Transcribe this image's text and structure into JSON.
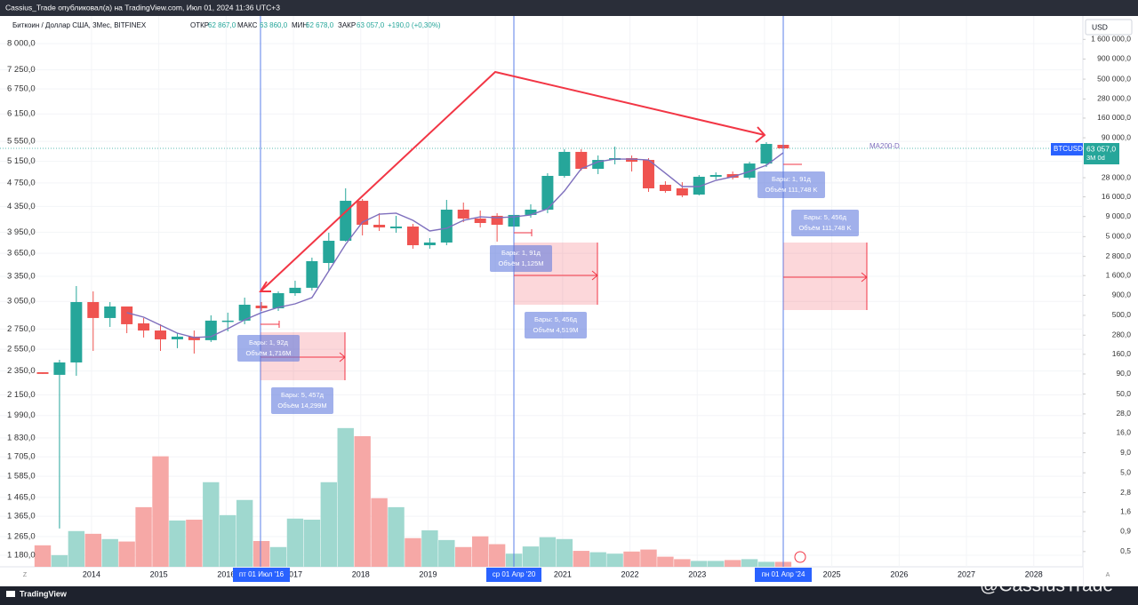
{
  "header": "Cassius_Trade опубликовал(а) на TradingView.com, Июл 01, 2024 11:36 UTC+3",
  "legend": {
    "symbol": "Биткоин / Доллар США, 3Мес, BITFINEX",
    "open_label": "ОТКР",
    "open": {
      "value": 62867,
      "label": "62 867,0"
    },
    "high_label": "МАКС",
    "high": {
      "value": 63860,
      "label": "63 860,0"
    },
    "low_label": "МИН",
    "low": {
      "value": 62678,
      "label": "62 678,0"
    },
    "close_label": "ЗАКР",
    "close": {
      "value": 63057,
      "label": "63 057,0"
    },
    "change": "+190,0 (+0,30%)"
  },
  "currency": "USD",
  "ticker": "BTCUSD",
  "countdown": "3М 0d",
  "date_labels": [
    "пт 01 Июл '16",
    "ср 01 Апр '20",
    "пн 01 Апр '24"
  ],
  "measures": [
    {
      "bars": "Бары: 1, 92д",
      "volume": "Объём 1,716M"
    },
    {
      "bars": "Бары: 5, 457д",
      "volume": "Объём 14,299M"
    },
    {
      "bars": "Бары: 1, 91д",
      "volume": "Объём 1,125M"
    },
    {
      "bars": "Бары: 5, 456д",
      "volume": "Объём 4,519M"
    },
    {
      "bars": "Бары: 1, 91д",
      "volume": "Объём 111,748 K"
    },
    {
      "bars": "Бары: 5, 456д",
      "volume": "Объём 111,748 K"
    }
  ],
  "footer": {
    "logo": "TradingView",
    "watermark": "@CassiusTrade",
    "zoom": "Z",
    "auto": "A"
  },
  "chart_data": {
    "type": "candlestick",
    "log": true,
    "categories": [
      null,
      null,
      null,
      null,
      null,
      null,
      null,
      null,
      null,
      null,
      null,
      null,
      null,
      null,
      null,
      null,
      null,
      null,
      null,
      null,
      null,
      null,
      null,
      null,
      null,
      null,
      null,
      null,
      null,
      null,
      null,
      null,
      null,
      null,
      null,
      null,
      null,
      null,
      null,
      null,
      null,
      null,
      null,
      null,
      null
    ],
    "open": [
      2340,
      2317,
      2427,
      3042,
      2866,
      2992,
      2809,
      2735,
      2646,
      2673,
      2638,
      2828,
      2838,
      3002,
      2972,
      3145,
      3209,
      3521,
      3826,
      4443,
      4062,
      4009,
      4035,
      3763,
      3801,
      4298,
      4158,
      4200,
      4035,
      4214,
      4298,
      4877,
      5335,
      5008,
      5177,
      5212,
      5177,
      4717,
      4655,
      4548,
      4861,
      4909,
      4844,
      5108,
      5478
    ],
    "high": [
      2340,
      2451,
      3230,
      3166,
      3042,
      2992,
      2866,
      2800,
      2708,
      2735,
      2895,
      2924,
      3093,
      3042,
      3166,
      3295,
      3592,
      3943,
      4655,
      4473,
      4242,
      4200,
      4075,
      3865,
      4458,
      4414,
      4284,
      4242,
      4242,
      4385,
      4926,
      5388,
      5388,
      5264,
      5441,
      5264,
      5212,
      4780,
      4764,
      4893,
      4942,
      4958,
      5142,
      5533,
      5496
    ],
    "low": [
      2325,
      1304,
      2309,
      2534,
      2772,
      2708,
      2664,
      2534,
      2560,
      2509,
      2620,
      2726,
      2800,
      2943,
      2943,
      3114,
      3177,
      3418,
      3814,
      3903,
      3969,
      3943,
      3714,
      3714,
      3763,
      4102,
      4022,
      3814,
      3969,
      4171,
      4242,
      4844,
      4975,
      4909,
      5092,
      4958,
      4594,
      4579,
      4503,
      4533,
      4812,
      4812,
      4812,
      5041,
      5352
    ],
    "close": [
      2325,
      2427,
      3042,
      2866,
      2992,
      2800,
      2735,
      2646,
      2673,
      2638,
      2838,
      2838,
      3012,
      2972,
      3145,
      3209,
      3545,
      3826,
      4443,
      4062,
      4022,
      4035,
      3763,
      3801,
      4298,
      4158,
      4089,
      4062,
      4214,
      4298,
      4877,
      5335,
      5008,
      5177,
      5212,
      5142,
      4655,
      4609,
      4533,
      4861,
      4893,
      4844,
      5108,
      5496,
      5406
    ],
    "volume": [
      0.6,
      0.45,
      0.91,
      0.84,
      0.72,
      0.67,
      1.83,
      8.1,
      1.24,
      1.27,
      3.8,
      1.45,
      2.26,
      0.68,
      0.57,
      1.31,
      1.27,
      3.8,
      18.5,
      14.6,
      2.38,
      1.83,
      0.74,
      0.93,
      0.7,
      0.57,
      0.78,
      0.62,
      0.47,
      0.58,
      0.76,
      0.72,
      0.51,
      0.49,
      0.47,
      0.5,
      0.53,
      0.43,
      0.4,
      0.38,
      0.38,
      0.39,
      0.4,
      0.37,
      0.37
    ],
    "ma": {
      "name": "MA200-D",
      "color": "#7e6fbd",
      "values": [
        null,
        null,
        null,
        null,
        null,
        2924,
        2875,
        2790,
        2708,
        2664,
        2673,
        2754,
        2847,
        2924,
        2982,
        3022,
        3093,
        3418,
        3776,
        4102,
        4227,
        4242,
        4130,
        3969,
        4009,
        4130,
        4185,
        4171,
        4185,
        4214,
        4313,
        4609,
        5008,
        5142,
        5194,
        5194,
        5177,
        4926,
        4686,
        4686,
        4796,
        4861,
        4958,
        5075,
        5317
      ]
    },
    "up_color": "#26a69a",
    "down_color": "#ef5350",
    "volume_up_color": "#9fd8cf",
    "volume_down_color": "#f6a8a6",
    "ylim": [
      1130,
      8870
    ],
    "yticks": [
      {
        "value": 8000,
        "label": "8 000,0"
      },
      {
        "value": 7250,
        "label": "7 250,0"
      },
      {
        "value": 6750,
        "label": "6 750,0"
      },
      {
        "value": 6150,
        "label": "6 150,0"
      },
      {
        "value": 5550,
        "label": "5 550,0"
      },
      {
        "value": 5150,
        "label": "5 150,0"
      },
      {
        "value": 4750,
        "label": "4 750,0"
      },
      {
        "value": 4350,
        "label": "4 350,0"
      },
      {
        "value": 3950,
        "label": "3 950,0"
      },
      {
        "value": 3650,
        "label": "3 650,0"
      },
      {
        "value": 3350,
        "label": "3 350,0"
      },
      {
        "value": 3050,
        "label": "3 050,0"
      },
      {
        "value": 2750,
        "label": "2 750,0"
      },
      {
        "value": 2550,
        "label": "2 550,0"
      },
      {
        "value": 2350,
        "label": "2 350,0"
      },
      {
        "value": 2150,
        "label": "2 150,0"
      },
      {
        "value": 1990,
        "label": "1 990,0"
      },
      {
        "value": 1830,
        "label": "1 830,0"
      },
      {
        "value": 1705,
        "label": "1 705,0"
      },
      {
        "value": 1585,
        "label": "1 585,0"
      },
      {
        "value": 1465,
        "label": "1 465,0"
      },
      {
        "value": 1365,
        "label": "1 365,0"
      },
      {
        "value": 1265,
        "label": "1 265,0"
      },
      {
        "value": 1180,
        "label": "1 180,0"
      }
    ],
    "y2lim": [
      0.32,
      3170000
    ],
    "y2ticks": [
      {
        "value": 1600000,
        "label": "1 600 000,0"
      },
      {
        "value": 900000,
        "label": "900 000,0"
      },
      {
        "value": 500000,
        "label": "500 000,0"
      },
      {
        "value": 280000,
        "label": "280 000,0"
      },
      {
        "value": 160000,
        "label": "160 000,0"
      },
      {
        "value": 90000,
        "label": "90 000,0"
      },
      {
        "value": 28000,
        "label": "28 000,0"
      },
      {
        "value": 16000,
        "label": "16 000,0"
      },
      {
        "value": 9000,
        "label": "9 000,0"
      },
      {
        "value": 5000,
        "label": "5 000,0"
      },
      {
        "value": 2800,
        "label": "2 800,0"
      },
      {
        "value": 1600,
        "label": "1 600,0"
      },
      {
        "value": 900,
        "label": "900,0"
      },
      {
        "value": 500,
        "label": "500,0"
      },
      {
        "value": 280,
        "label": "280,0"
      },
      {
        "value": 160,
        "label": "160,0"
      },
      {
        "value": 90,
        "label": "90,0"
      },
      {
        "value": 50,
        "label": "50,0"
      },
      {
        "value": 28,
        "label": "28,0"
      },
      {
        "value": 16,
        "label": "16,0"
      },
      {
        "value": 9,
        "label": "9,0"
      },
      {
        "value": 5,
        "label": "5,0"
      },
      {
        "value": 2.8,
        "label": "2,8"
      },
      {
        "value": 1.6,
        "label": "1,6"
      },
      {
        "value": 0.9,
        "label": "0,9"
      },
      {
        "value": 0.5,
        "label": "0,5"
      }
    ],
    "xlim": [
      2012.64,
      2028.73
    ],
    "xticks": [
      2014,
      2015,
      2016,
      2017,
      2018,
      2019,
      2020,
      2021,
      2022,
      2023,
      2024,
      2025,
      2026,
      2027,
      2028
    ]
  }
}
